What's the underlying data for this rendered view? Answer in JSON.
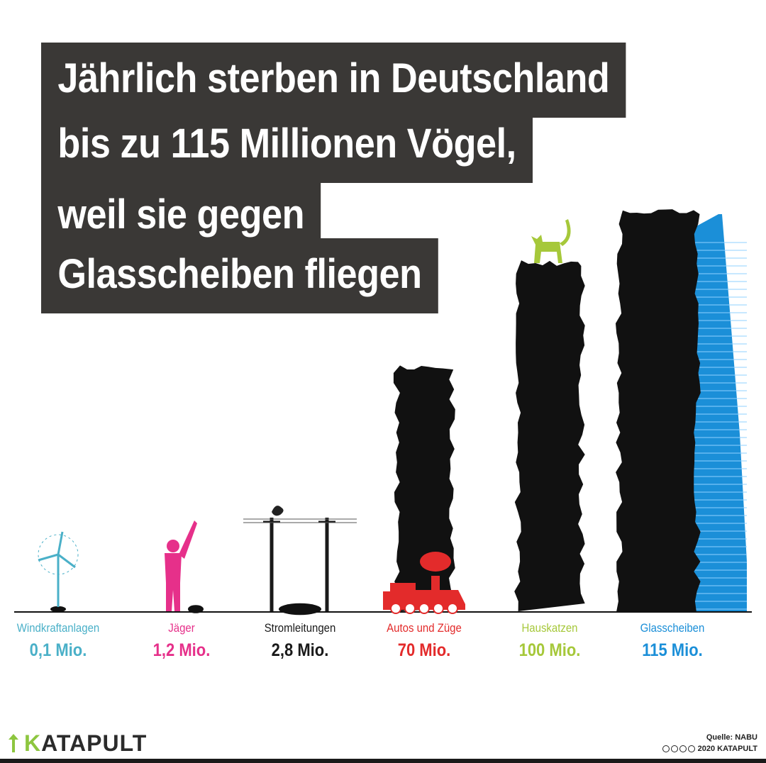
{
  "title_lines": [
    "Jährlich sterben in Deutschland",
    "bis zu 115 Millionen Vögel,",
    "weil sie gegen",
    "Glasscheiben fliegen"
  ],
  "chart_data": {
    "type": "bar",
    "title": "Jährlich sterben in Deutschland bis zu 115 Millionen Vögel, weil sie gegen Glasscheiben fliegen",
    "categories": [
      "Windkraftanlagen",
      "Jäger",
      "Stromleitungen",
      "Autos und Züge",
      "Hauskatzen",
      "Glasscheiben"
    ],
    "values": [
      0.1,
      1.2,
      2.8,
      70,
      100,
      115
    ],
    "unit": "Mio.",
    "value_labels": [
      "0,1 Mio.",
      "1,2 Mio.",
      "2,8 Mio.",
      "70 Mio.",
      "100 Mio.",
      "115 Mio."
    ],
    "colors": [
      "#4ab0c8",
      "#e6308a",
      "#1a1a1a",
      "#e32b2b",
      "#a6c83a",
      "#1b8fd8"
    ],
    "icons": [
      "wind-turbine-icon",
      "hunter-icon",
      "power-line-icon",
      "train-icon",
      "cat-icon",
      "glass-tower-icon"
    ],
    "bar_color": "#111111",
    "xlabel": "",
    "ylabel": "",
    "grid": false
  },
  "footer": {
    "source": "Quelle: NABU",
    "copyright": "2020 KATAPULT",
    "brand": "KATAPULT"
  }
}
